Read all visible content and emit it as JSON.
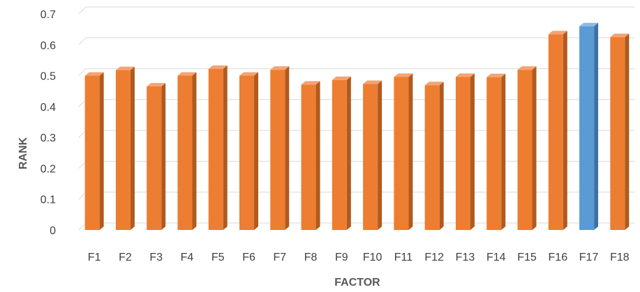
{
  "chart_data": {
    "type": "bar",
    "title": "",
    "xlabel": "FACTOR",
    "ylabel": "RANK",
    "categories": [
      "F1",
      "F2",
      "F3",
      "F4",
      "F5",
      "F6",
      "F7",
      "F8",
      "F9",
      "F10",
      "F11",
      "F12",
      "F13",
      "F14",
      "F15",
      "F16",
      "F17",
      "F18"
    ],
    "values": [
      0.5,
      0.518,
      0.465,
      0.5,
      0.522,
      0.5,
      0.519,
      0.471,
      0.486,
      0.473,
      0.496,
      0.469,
      0.496,
      0.495,
      0.519,
      0.634,
      0.66,
      0.625
    ],
    "ylim": [
      0,
      0.7
    ],
    "yticks": [
      "0",
      "0.1",
      "0.2",
      "0.3",
      "0.4",
      "0.5",
      "0.6",
      "0.7"
    ],
    "grid": true,
    "legend": "none",
    "highlight_index": 16,
    "colors": {
      "bar": "#ED7D31",
      "bar_side": "#B05A1E",
      "bar_top": "#F4A373",
      "highlight": "#5B9BD5",
      "highlight_side": "#3F72A4",
      "highlight_top": "#8DBBE5",
      "grid": "#D9D9D9"
    }
  }
}
